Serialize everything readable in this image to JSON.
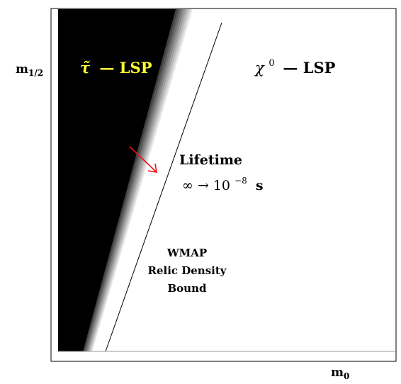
{
  "axes": {
    "y_label_main": "m",
    "y_label_sub": "1/2",
    "x_label_main": "m",
    "x_label_sub": "0"
  },
  "regions": {
    "stau": {
      "symbol": "τ̃",
      "text": "— LSP",
      "color": "#ffff33"
    },
    "neutralino": {
      "symbol": "χ",
      "superscript": "0",
      "text": "— LSP"
    }
  },
  "lifetime": {
    "title": "Lifetime",
    "formula": "∞ → 10",
    "exponent": "−8",
    "unit": "s"
  },
  "wmap": {
    "line1": "WMAP",
    "line2": "Relic Density",
    "line3": "Bound"
  },
  "colors": {
    "arrow": "#ee1111",
    "black_region": "#000000"
  }
}
